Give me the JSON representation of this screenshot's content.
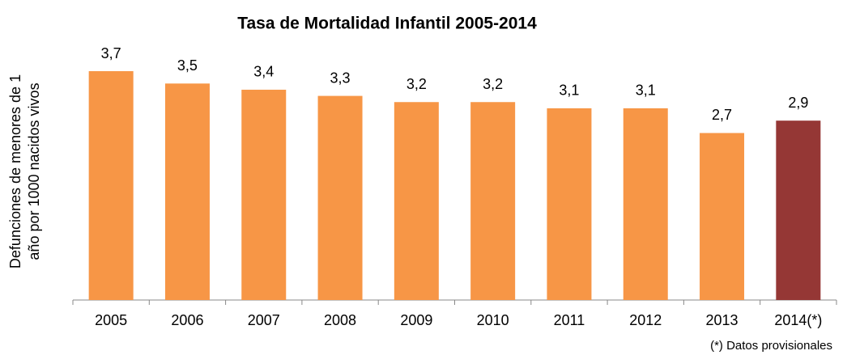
{
  "chart_data": {
    "type": "bar",
    "title": "Tasa de Mortalidad Infantil 2005-2014",
    "ylabel": [
      "Defunciones de menores de 1",
      "año por 1000 nacidos vivos"
    ],
    "categories": [
      "2005",
      "2006",
      "2007",
      "2008",
      "2009",
      "2010",
      "2011",
      "2012",
      "2013",
      "2014(*)"
    ],
    "values": [
      3.7,
      3.5,
      3.4,
      3.3,
      3.2,
      3.2,
      3.1,
      3.1,
      2.7,
      2.9
    ],
    "value_labels": [
      "3,7",
      "3,5",
      "3,4",
      "3,3",
      "3,2",
      "3,2",
      "3,1",
      "3,1",
      "2,7",
      "2,9"
    ],
    "colors": [
      "#f79646",
      "#f79646",
      "#f79646",
      "#f79646",
      "#f79646",
      "#f79646",
      "#f79646",
      "#f79646",
      "#f79646",
      "#953735"
    ],
    "footnote": "(*) Datos provisionales"
  }
}
